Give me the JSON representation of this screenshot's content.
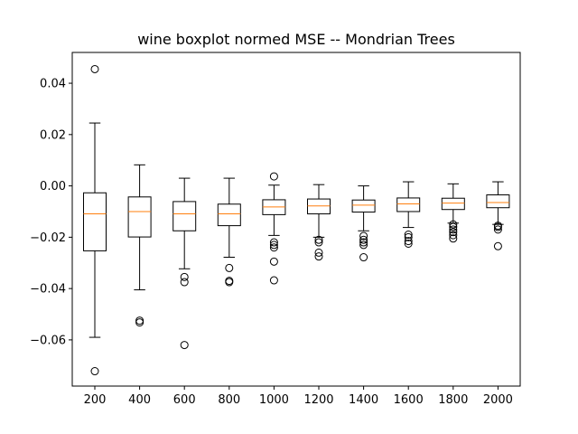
{
  "chart_data": {
    "type": "boxplot",
    "title": "wine boxplot normed MSE -- Mondrian Trees",
    "xlabel": "",
    "ylabel": "",
    "ylim": [
      -0.078,
      0.052
    ],
    "yticks": [
      0.04,
      0.02,
      0.0,
      -0.02,
      -0.04,
      -0.06
    ],
    "ytick_labels": [
      "0.04",
      "0.02",
      "0.00",
      "−0.02",
      "−0.04",
      "−0.06"
    ],
    "grid": false,
    "colors": {
      "box": "#000000",
      "median": "#ff7f0e"
    },
    "categories": [
      "200",
      "400",
      "600",
      "800",
      "1000",
      "1200",
      "1400",
      "1600",
      "1800",
      "2000"
    ],
    "boxes": [
      {
        "whisker_low": -0.059,
        "q1": -0.0253,
        "median": -0.0109,
        "q3": -0.0027,
        "whisker_high": 0.0245,
        "outliers": [
          0.0455,
          -0.0722
        ]
      },
      {
        "whisker_low": -0.0405,
        "q1": -0.0199,
        "median": -0.01,
        "q3": -0.0043,
        "whisker_high": 0.0082,
        "outliers": [
          -0.0525,
          -0.0532
        ]
      },
      {
        "whisker_low": -0.0323,
        "q1": -0.0175,
        "median": -0.0109,
        "q3": -0.0061,
        "whisker_high": 0.003,
        "outliers": [
          -0.0355,
          -0.0375,
          -0.062
        ]
      },
      {
        "whisker_low": -0.0278,
        "q1": -0.0155,
        "median": -0.0109,
        "q3": -0.0071,
        "whisker_high": 0.003,
        "outliers": [
          -0.032,
          -0.037,
          -0.0375
        ]
      },
      {
        "whisker_low": -0.0193,
        "q1": -0.0112,
        "median": -0.0082,
        "q3": -0.0054,
        "whisker_high": 0.0003,
        "outliers": [
          0.0037,
          -0.022,
          -0.023,
          -0.024,
          -0.0295,
          -0.0368
        ]
      },
      {
        "whisker_low": -0.02,
        "q1": -0.0109,
        "median": -0.0078,
        "q3": -0.0051,
        "whisker_high": 0.0005,
        "outliers": [
          -0.021,
          -0.022,
          -0.026,
          -0.0275
        ]
      },
      {
        "whisker_low": -0.0175,
        "q1": -0.0102,
        "median": -0.0075,
        "q3": -0.0055,
        "whisker_high": 0.0,
        "outliers": [
          -0.0195,
          -0.021,
          -0.022,
          -0.023,
          -0.0278
        ]
      },
      {
        "whisker_low": -0.0162,
        "q1": -0.01,
        "median": -0.007,
        "q3": -0.0047,
        "whisker_high": 0.0016,
        "outliers": [
          -0.019,
          -0.02,
          -0.0215,
          -0.0225
        ]
      },
      {
        "whisker_low": -0.0145,
        "q1": -0.0092,
        "median": -0.0067,
        "q3": -0.0048,
        "whisker_high": 0.0008,
        "outliers": [
          -0.015,
          -0.016,
          -0.017,
          -0.018,
          -0.0192,
          -0.0205
        ]
      },
      {
        "whisker_low": -0.015,
        "q1": -0.0085,
        "median": -0.0065,
        "q3": -0.0035,
        "whisker_high": 0.0016,
        "outliers": [
          -0.0155,
          -0.016,
          -0.017,
          -0.0235
        ]
      }
    ]
  }
}
